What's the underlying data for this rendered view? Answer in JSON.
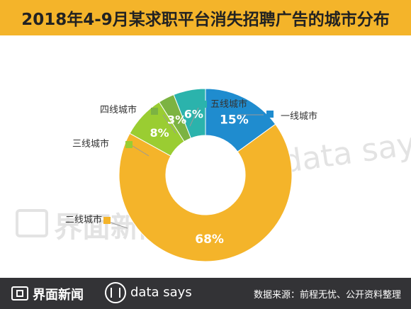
{
  "title": "2018年4-9月某求职平台消失招聘广告的城市分布",
  "chart_data": {
    "type": "pie",
    "donut": true,
    "title": "2018年4-9月某求职平台消失招聘广告的城市分布",
    "slices": [
      {
        "label": "一线城市",
        "value": 15,
        "value_label": "15%",
        "color": "#1f8ccf"
      },
      {
        "label": "二线城市",
        "value": 68,
        "value_label": "68%",
        "color": "#f4b42a"
      },
      {
        "label": "三线城市",
        "value": 8,
        "value_label": "8%",
        "color": "#9acd32"
      },
      {
        "label": "四线城市",
        "value": 3,
        "value_label": "3%",
        "color": "#7cb342"
      },
      {
        "label": "五线城市",
        "value": 6,
        "value_label": "6%",
        "color": "#2bb3ac"
      }
    ],
    "legend": "callouts"
  },
  "watermark": {
    "left": "界面新闻",
    "right": "data says"
  },
  "footer": {
    "brand": "界面新闻",
    "datasays": "data says",
    "source": "数据来源：前程无忧、公开资料整理"
  }
}
